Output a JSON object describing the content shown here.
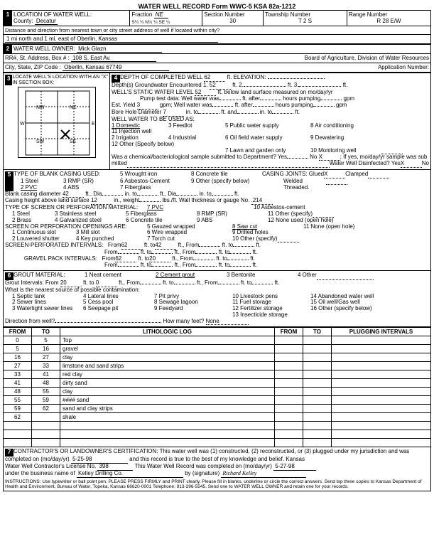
{
  "form_header": "WATER WELL RECORD    Form WWC-5    KSA 82a-1212",
  "s1": {
    "title": "LOCATION OF WATER WELL:",
    "county_label": "County:",
    "county": "Decatur",
    "fraction_label": "Fraction",
    "fraction_hand": "NE",
    "fraction_parts": "S¼   ¼   N¼   ¼   SE  ¼",
    "section_label": "Section Number",
    "section": "30",
    "township_label": "Township Number",
    "township": "T    2    S",
    "range_label": "Range Number",
    "range": "R   28   E/W",
    "distance_label": "Distance and direction from nearest town or city street address of well if located within city?",
    "distance": "1 mi north and 1 mi. east of Oberlin, Kansas"
  },
  "s2": {
    "title": "WATER WELL OWNER:",
    "name": "Mick Glazn",
    "addr_label": "RR#, St. Address, Box #",
    "addr": "108 S. East Av.",
    "city_label": "City, State, ZIP Code",
    "city": "Oberlin, Kansas 67749",
    "board": "Board of Agriculture, Division of Water Resources",
    "app_label": "Application Number:"
  },
  "s3": {
    "title": "LOCATE WELL'S LOCATION WITH AN \"X\" IN SECTION BOX:",
    "nw": "NW",
    "ne": "NE",
    "sw": "SW",
    "se": "SE",
    "w": "W",
    "e": "E",
    "n": "N",
    "s": "S",
    "mile": "1 Mile"
  },
  "s4": {
    "depth_label": "DEPTH OF COMPLETED WELL",
    "depth": "62",
    "ft": "ft.",
    "elev_label": "ELEVATION:",
    "gw_label": "Depth(s) Groundwater Encountered  1.",
    "gw1": "52",
    "ft2": "ft. 2.",
    "ft3": "ft. 3.",
    "static_label": "WELL'S STATIC WATER LEVEL",
    "static": "52",
    "static_after": "ft. below land surface measured on mo/day/yr",
    "pump_label": "Pump test data:  Well water was",
    "after1": "ft. after",
    "hours1": "hours pumping",
    "gpm": "gpm",
    "yield_label": "Est. Yield",
    "yield": "3",
    "yield_unit": "gpm; Well water was",
    "bore_label": "Bore Hole Diameter",
    "bore": "7",
    "bore_unit": "in. to",
    "bore_ft": "ft. and",
    "bore_in2": "in. to",
    "bore_ft2": "ft.",
    "use_label": "WELL WATER TO BE USED AS:",
    "uses": [
      "1 Domestic",
      "2 Irrigation",
      "3 Feedlot",
      "4 Industrial",
      "5 Public water supply",
      "6 Oil field water supply",
      "7 Lawn and garden only",
      "8 Air conditioning",
      "9 Dewatering",
      "10 Monitoring well",
      "11 Injection well",
      "12 Other (Specify below)"
    ],
    "chem_label": "Was a chemical/bacteriological sample submitted to Department? Yes",
    "chem_no": "No",
    "chem_x": "X",
    "chem_after": "If yes, mo/day/yr sample was sub",
    "mitted": "mitted",
    "disinf_label": "Water Well Disinfected?  Yes",
    "disinf_x": "X",
    "disinf_no": "No"
  },
  "s5": {
    "title": "TYPE OF BLANK CASING USED:",
    "types": [
      "1 Steel",
      "2 PVC",
      "3 RMP (SR)",
      "4 ABS",
      "5 Wrought iron",
      "6 Asbestos-Cement",
      "7 Fiberglass",
      "8 Concrete tile",
      "9 Other (specify below)"
    ],
    "joints_label": "CASING JOINTS: Glued",
    "joints_x": "X",
    "joints_after": "Clamped",
    "welded": "Welded",
    "threaded": "Threaded.",
    "blank_dia_label": "Blank casing diameter",
    "blank_dia": "42",
    "dia_unit": "ft., Dia",
    "in_to": "in. to",
    "ft_dia": "ft., Dia",
    "height_label": "Casing height above land surface",
    "height": "12",
    "weight_label": "in., weight",
    "lbs": "lbs./ft.  Wall thickness or gauge No.",
    "gauge": ".214",
    "screen_title": "TYPE OF SCREEN OR PERFORATION MATERIAL:",
    "screen_val": "7 PVC",
    "screens": [
      "1 Steel",
      "2 Brass",
      "3 Stainless steel",
      "4 Galvanized steel",
      "5 Fiberglass",
      "6 Concrete tile",
      "7 PVC",
      "8 RMP (SR)",
      "9 ABS",
      "10 Asbestos-cement",
      "11 Other (specify)",
      "12 None used (open hole)"
    ],
    "open_title": "SCREEN OR PERFORATION OPENINGS ARE:",
    "open_val": "8 Saw cut",
    "opens": [
      "1 Continuous slot",
      "2 Louvered shutter",
      "3 Mill slot",
      "4 Key punched",
      "5 Gauzed wrapped",
      "6 Wire wrapped",
      "7 Torch cut",
      "8 Saw cut",
      "9 Drilled holes",
      "10 Other (specify)",
      "11 None (open hole)"
    ],
    "perf_label": "SCREEN-PERFORATED INTERVALS:",
    "from": "From",
    "to": "ft. to",
    "ft_from": "ft., From",
    "ft_to": "ft. to",
    "ft_end": "ft.",
    "perf_from": "62",
    "perf_to": "42",
    "gravel_label": "GRAVEL PACK INTERVALS:",
    "gravel_from": "62",
    "gravel_to": "20"
  },
  "s6": {
    "title": "GROUT MATERIAL:",
    "opts": [
      "1 Neat cement",
      "2 Cement grout",
      "3 Bentonite",
      "4 Other"
    ],
    "selected": "2 Cement grout",
    "intervals_label": "Grout Intervals:  From",
    "int_from": "20",
    "ft_to": "ft. to",
    "int_to": "0",
    "ft_from": "ft., From",
    "contam_label": "What is the nearest source of possible contamination:",
    "contams": [
      "1 Septic tank",
      "2 Sewer lines",
      "3 Watertight sewer lines",
      "4 Lateral lines",
      "5 Cess pool",
      "6 Seepage pit",
      "7 Pit privy",
      "8 Sewage lagoon",
      "9 Feedyard",
      "10 Livestock pens",
      "11 Fuel storage",
      "12 Fertilizer storage",
      "13 Insecticide storage",
      "14 Abandoned water well",
      "15 Oil well/Gas well",
      "16 Other (specify below)"
    ],
    "dir_label": "Direction from well?",
    "feet_label": "How many feet?",
    "feet": "None"
  },
  "litho": {
    "headers": [
      "FROM",
      "TO",
      "LITHOLOGIC LOG",
      "FROM",
      "TO",
      "PLUGGING INTERVALS"
    ],
    "rows": [
      [
        "0",
        "5",
        "Top",
        "",
        "",
        ""
      ],
      [
        "5",
        "16",
        "gravel",
        "",
        "",
        ""
      ],
      [
        "16",
        "27",
        "clay",
        "",
        "",
        ""
      ],
      [
        "27",
        "33",
        "limstone and sand strips",
        "",
        "",
        ""
      ],
      [
        "33",
        "41",
        "red clay",
        "",
        "",
        ""
      ],
      [
        "41",
        "48",
        "dirty sand",
        "",
        "",
        ""
      ],
      [
        "48",
        "55",
        "clay",
        "",
        "",
        ""
      ],
      [
        "55",
        "59",
        "#### sand",
        "",
        "",
        ""
      ],
      [
        "59",
        "62",
        "sand and clay strips",
        "",
        "",
        ""
      ],
      [
        "62",
        "",
        "shale",
        "",
        "",
        ""
      ],
      [
        "",
        "",
        "",
        "",
        "",
        ""
      ],
      [
        "",
        "",
        "",
        "",
        "",
        ""
      ],
      [
        "",
        "",
        "",
        "",
        "",
        ""
      ]
    ]
  },
  "s7": {
    "cert": "CONTRACTOR'S OR LANDOWNER'S CERTIFICATION: This water well was (1) constructed, (2) reconstructed, or (3) plugged under my jurisdiction and was",
    "completed_label": "completed on (mo/day/yr)",
    "completed": "5-25-98",
    "cert2": "and this record is true to the best of my knowledge and belief. Kansas",
    "lic_label": "Water Well Contractor's License No.",
    "lic": "398",
    "rec_label": "This Water Well Record was completed on (mo/day/yr)",
    "rec_date": "5-27-98",
    "biz_label": "under the business name of",
    "biz": "Kelley Drilling Co.",
    "sig_label": "by (signature)",
    "instructions": "INSTRUCTIONS: Use typewriter or ball point pen. PLEASE PRESS FIRMLY and PRINT clearly. Please fill in blanks, underline or circle the correct answers. Send top three copies to Kansas Department of Health and Environment, Bureau of Water, Topeka, Kansas 66620-0001  Telephone: 913-296-5545. Send one to WATER WELL OWNER and retain one for your records."
  }
}
